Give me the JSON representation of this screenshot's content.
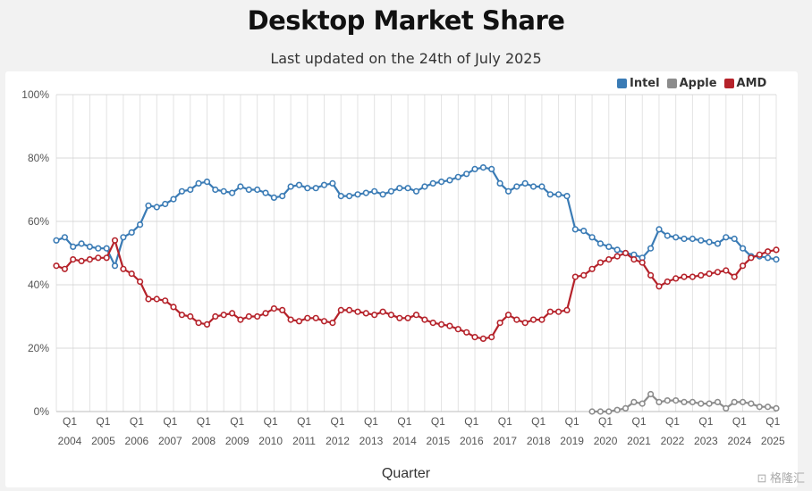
{
  "title": "Desktop Market Share",
  "subtitle": "Last updated on the 24th of July 2025",
  "watermark": "⊡ 格隆汇",
  "legend": [
    {
      "name": "Intel",
      "color": "#3a7bb5"
    },
    {
      "name": "Apple",
      "color": "#8c8c8c"
    },
    {
      "name": "AMD",
      "color": "#b5222a"
    }
  ],
  "chart_data": {
    "type": "line",
    "title": "Desktop Market Share",
    "subtitle": "Last updated on the 24th of July 2025",
    "xlabel": "Quarter",
    "ylabel": "",
    "ylim": [
      0,
      100
    ],
    "yticks": [
      "0%",
      "20%",
      "40%",
      "60%",
      "80%",
      "100%"
    ],
    "x_ticks": [
      {
        "q": "Q1",
        "year": "2004"
      },
      {
        "q": "Q1",
        "year": "2005"
      },
      {
        "q": "Q1",
        "year": "2006"
      },
      {
        "q": "Q1",
        "year": "2007"
      },
      {
        "q": "Q1",
        "year": "2008"
      },
      {
        "q": "Q1",
        "year": "2009"
      },
      {
        "q": "Q1",
        "year": "2010"
      },
      {
        "q": "Q1",
        "year": "2011"
      },
      {
        "q": "Q1",
        "year": "2012"
      },
      {
        "q": "Q1",
        "year": "2013"
      },
      {
        "q": "Q1",
        "year": "2014"
      },
      {
        "q": "Q1",
        "year": "2015"
      },
      {
        "q": "Q1",
        "year": "2016"
      },
      {
        "q": "Q1",
        "year": "2017"
      },
      {
        "q": "Q1",
        "year": "2018"
      },
      {
        "q": "Q1",
        "year": "2019"
      },
      {
        "q": "Q1",
        "year": "2020"
      },
      {
        "q": "Q1",
        "year": "2021"
      },
      {
        "q": "Q1",
        "year": "2022"
      },
      {
        "q": "Q1",
        "year": "2023"
      },
      {
        "q": "Q1",
        "year": "2024"
      },
      {
        "q": "Q1",
        "year": "2025"
      }
    ],
    "grid": true,
    "legend_position": "top-right",
    "series": [
      {
        "name": "Intel",
        "color": "#3a7bb5",
        "values": [
          54,
          55,
          52,
          53,
          52,
          51.5,
          51.5,
          46,
          55,
          56.5,
          59,
          65,
          64.5,
          65.5,
          67,
          69.5,
          70,
          72,
          72.5,
          70,
          69.5,
          69,
          71,
          70,
          70,
          69,
          67.5,
          68,
          71,
          71.5,
          70.5,
          70.5,
          71.5,
          72,
          68,
          68,
          68.5,
          69,
          69.5,
          68.5,
          69.5,
          70.5,
          70.5,
          69.5,
          71,
          72,
          72.5,
          73,
          74,
          75,
          76.5,
          77,
          76.5,
          72,
          69.5,
          71,
          72,
          71,
          71,
          68.5,
          68.5,
          68,
          57.5,
          57,
          55,
          53,
          52,
          51,
          50,
          49.5,
          48.5,
          51.5,
          57.5,
          55.5,
          55,
          54.5,
          54.5,
          54,
          53.5,
          53,
          55,
          54.5,
          51.5,
          49,
          49,
          48.5,
          48
        ]
      },
      {
        "name": "AMD",
        "color": "#b5222a",
        "values": [
          46,
          45,
          48,
          47.5,
          48,
          48.5,
          48.5,
          54,
          45,
          43.5,
          41,
          35.5,
          35.5,
          35,
          33,
          30.5,
          30,
          28,
          27.5,
          30,
          30.5,
          31,
          29,
          30,
          30,
          31,
          32.5,
          32,
          29,
          28.5,
          29.5,
          29.5,
          28.5,
          28,
          32,
          32,
          31.5,
          31,
          30.5,
          31.5,
          30.5,
          29.5,
          29.5,
          30.5,
          29,
          28,
          27.5,
          27,
          26,
          25,
          23.5,
          23,
          23.5,
          28,
          30.5,
          29,
          28,
          29,
          29,
          31.5,
          31.5,
          32,
          42.5,
          43,
          45,
          47,
          48,
          49,
          50,
          48,
          47,
          43,
          39.5,
          41,
          42,
          42.5,
          42.5,
          43,
          43.5,
          44,
          44.5,
          42.5,
          46,
          48.5,
          49.5,
          50.5,
          51
        ]
      },
      {
        "name": "Apple",
        "color": "#8c8c8c",
        "start_index": 64,
        "values": [
          0,
          0,
          0,
          0.5,
          1,
          3,
          2.5,
          5.5,
          3,
          3.5,
          3.5,
          3,
          3,
          2.5,
          2.5,
          3,
          1,
          3,
          3,
          2.5,
          1.5,
          1.5,
          1
        ]
      }
    ]
  }
}
